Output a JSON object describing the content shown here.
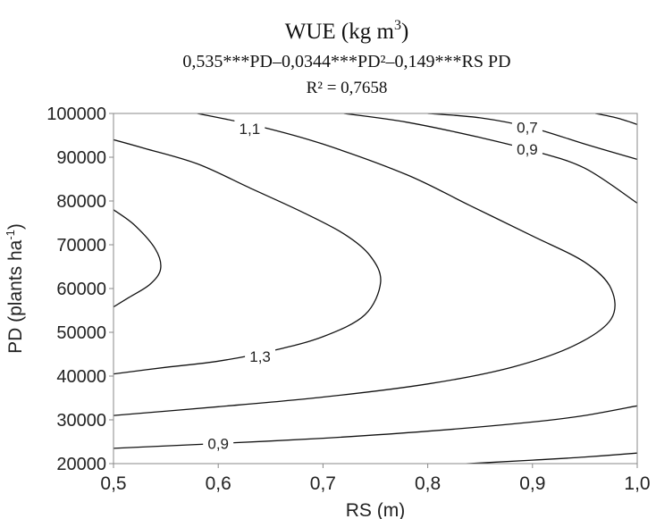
{
  "chart_data": {
    "type": "contour",
    "title": "WUE (kg m",
    "title_superscript": "3",
    "title_close": ")",
    "equation": "0,535***PD–0,0344***PD²–0,149***RS PD",
    "r_squared": "R² = 0,7658",
    "xlabel": "RS (m)",
    "ylabel": "PD (plants ha",
    "ylabel_superscript": "-1",
    "ylabel_close": ")",
    "xlim": [
      0.5,
      1.0
    ],
    "ylim": [
      20000,
      100000
    ],
    "x_ticks": [
      0.5,
      0.6,
      0.7,
      0.8,
      0.9,
      1.0
    ],
    "x_tick_labels": [
      "0,5",
      "0,6",
      "0,7",
      "0,8",
      "0,9",
      "1,0"
    ],
    "y_ticks": [
      20000,
      30000,
      40000,
      50000,
      60000,
      70000,
      80000,
      90000,
      100000
    ],
    "y_tick_labels": [
      "20000",
      "30000",
      "40000",
      "50000",
      "60000",
      "70000",
      "80000",
      "90000",
      "100000"
    ],
    "grid": false,
    "contours": [
      {
        "level": "1,3",
        "points": [
          [
            0.5,
            78000
          ],
          [
            0.52,
            74500
          ],
          [
            0.54,
            69000
          ],
          [
            0.545,
            64500
          ],
          [
            0.535,
            61000
          ],
          [
            0.515,
            58000
          ],
          [
            0.5,
            55800
          ]
        ]
      },
      {
        "level": "1,3",
        "points": [
          [
            0.5,
            40500
          ],
          [
            0.55,
            42000
          ],
          [
            0.6,
            43400
          ],
          [
            0.65,
            45700
          ],
          [
            0.7,
            49000
          ],
          [
            0.74,
            54000
          ],
          [
            0.755,
            61500
          ],
          [
            0.745,
            67500
          ],
          [
            0.72,
            72500
          ],
          [
            0.68,
            77500
          ],
          [
            0.63,
            83000
          ],
          [
            0.58,
            88500
          ],
          [
            0.53,
            92000
          ],
          [
            0.5,
            94000
          ]
        ],
        "label_at": [
          0.64,
          44500
        ]
      },
      {
        "level": "1,1",
        "points": [
          [
            0.5,
            31000
          ],
          [
            0.6,
            33000
          ],
          [
            0.7,
            35200
          ],
          [
            0.8,
            38200
          ],
          [
            0.88,
            42000
          ],
          [
            0.94,
            47000
          ],
          [
            0.975,
            53000
          ],
          [
            0.975,
            60000
          ],
          [
            0.95,
            66000
          ],
          [
            0.9,
            72000
          ],
          [
            0.84,
            79000
          ],
          [
            0.78,
            86000
          ],
          [
            0.7,
            93000
          ],
          [
            0.64,
            97000
          ],
          [
            0.58,
            100000
          ]
        ],
        "label_at": [
          0.63,
          96500
        ]
      },
      {
        "level": "0,9",
        "points": [
          [
            0.5,
            23500
          ],
          [
            0.6,
            24600
          ],
          [
            0.7,
            25800
          ],
          [
            0.8,
            27400
          ],
          [
            0.9,
            29500
          ],
          [
            0.95,
            31000
          ],
          [
            1.0,
            33200
          ]
        ],
        "label_at": [
          0.6,
          24600
        ]
      },
      {
        "level": "0,9",
        "points": [
          [
            0.72,
            100000
          ],
          [
            0.78,
            98000
          ],
          [
            0.85,
            94500
          ],
          [
            0.9,
            91500
          ],
          [
            0.95,
            87500
          ],
          [
            1.0,
            79500
          ]
        ],
        "label_at": [
          0.895,
          91800
        ]
      },
      {
        "level": "0,7",
        "points": [
          [
            0.8,
            19500
          ],
          [
            0.9,
            20800
          ],
          [
            0.95,
            21500
          ],
          [
            1.0,
            22400
          ]
        ]
      },
      {
        "level": "0,7",
        "points": [
          [
            0.8,
            100000
          ],
          [
            0.85,
            99000
          ],
          [
            0.9,
            96700
          ],
          [
            0.95,
            93000
          ],
          [
            1.0,
            89500
          ]
        ],
        "label_at": [
          0.895,
          96800
        ]
      },
      {
        "level": "",
        "points": [
          [
            0.96,
            100000
          ],
          [
            0.98,
            99000
          ],
          [
            1.0,
            97500
          ]
        ]
      }
    ]
  }
}
